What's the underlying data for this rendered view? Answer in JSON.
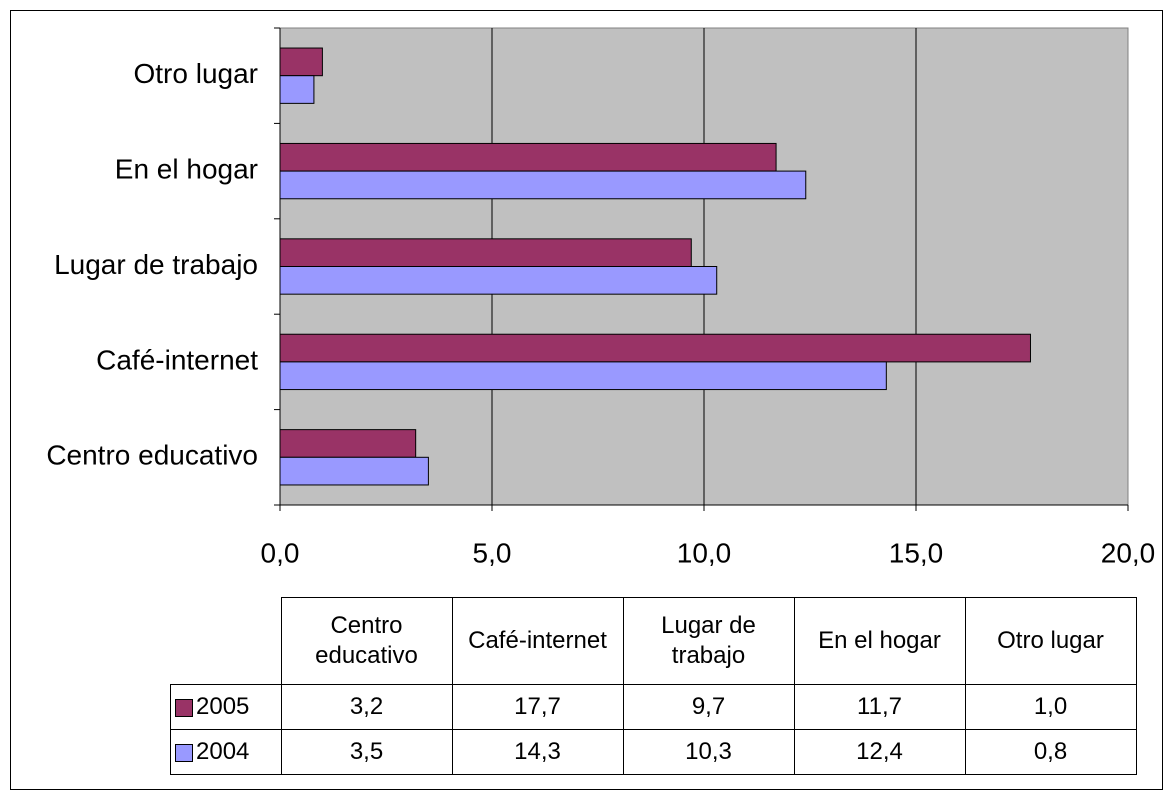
{
  "chart_data": {
    "type": "bar",
    "orientation": "horizontal",
    "categories": [
      "Centro educativo",
      "Café-internet",
      "Lugar de trabajo",
      "En el hogar",
      "Otro lugar"
    ],
    "series": [
      {
        "name": "2005",
        "color": "#993366",
        "values": [
          3.2,
          17.7,
          9.7,
          11.7,
          1.0
        ],
        "value_labels": [
          "3,2",
          "17,7",
          "9,7",
          "11,7",
          "1,0"
        ]
      },
      {
        "name": "2004",
        "color": "#9999ff",
        "values": [
          3.5,
          14.3,
          10.3,
          12.4,
          0.8
        ],
        "value_labels": [
          "3,5",
          "14,3",
          "10,3",
          "12,4",
          "0,8"
        ]
      }
    ],
    "xlim": [
      0,
      20
    ],
    "xticks": [
      {
        "value": 0,
        "label": "0,0"
      },
      {
        "value": 5,
        "label": "5,0"
      },
      {
        "value": 10,
        "label": "10,0"
      },
      {
        "value": 15,
        "label": "15,0"
      },
      {
        "value": 20,
        "label": "20,0"
      }
    ],
    "grid": true,
    "plot_background": "#c0c0c0",
    "data_table": true
  }
}
